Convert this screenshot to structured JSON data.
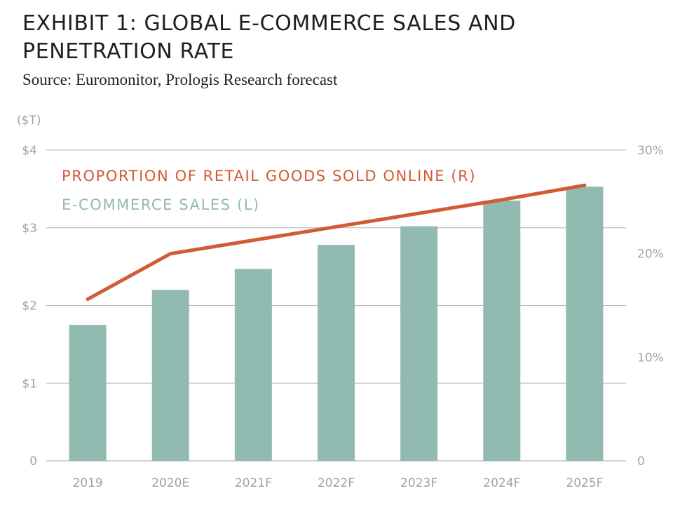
{
  "title": "EXHIBIT 1: GLOBAL E-COMMERCE SALES AND PENETRATION RATE",
  "subtitle": "Source: Euromonitor, Prologis Research forecast",
  "colors": {
    "bar": "#91bab0",
    "line": "#d25a34",
    "grid": "#b4b4b4",
    "axis_text": "#a2a2a2",
    "title": "#1f1f1f"
  },
  "chart_data": {
    "type": "bar",
    "title": "EXHIBIT 1: GLOBAL E-COMMERCE SALES AND PENETRATION RATE",
    "subtitle": "Source: Euromonitor, Prologis Research forecast",
    "categories": [
      "2019",
      "2020E",
      "2021F",
      "2022F",
      "2023F",
      "2024F",
      "2025F"
    ],
    "y_unit_label": "($T)",
    "y_left": {
      "ticks": [
        "0",
        "$1",
        "$2",
        "$3",
        "$4"
      ],
      "tick_values": [
        0,
        1,
        2,
        3,
        4
      ],
      "lim": [
        0,
        4
      ]
    },
    "y_right": {
      "ticks": [
        "0",
        "10%",
        "20%",
        "30%"
      ],
      "tick_values": [
        0,
        10,
        20,
        30
      ],
      "lim": [
        0,
        30
      ]
    },
    "series": [
      {
        "name": "E-COMMERCE SALES (L)",
        "type": "bar",
        "axis": "left",
        "values": [
          1.75,
          2.2,
          2.47,
          2.78,
          3.02,
          3.35,
          3.53
        ]
      },
      {
        "name": "PROPORTION OF RETAIL GOODS SOLD ONLINE (R)",
        "type": "line",
        "axis": "right",
        "values": [
          15.6,
          20.0,
          21.3,
          22.6,
          23.9,
          25.2,
          26.6
        ]
      }
    ],
    "grid": true,
    "legend_position": "top-left"
  }
}
